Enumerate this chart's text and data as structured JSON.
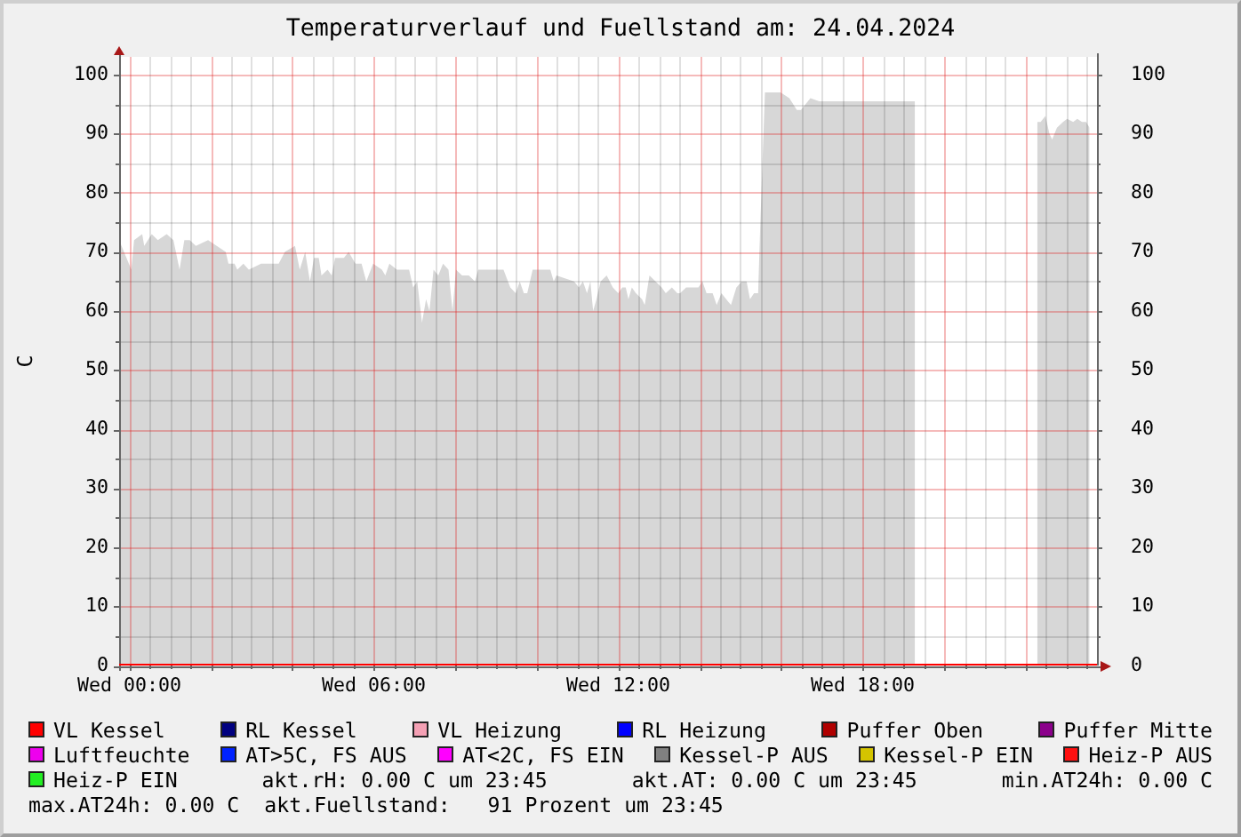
{
  "chart_data": {
    "type": "area",
    "title": "Temperaturverlauf und Fuellstand am: 24.04.2024",
    "ylabel": "C",
    "xlim": [
      "2024-04-23T23:45",
      "2024-04-24T23:45"
    ],
    "xticks": [
      {
        "value": "2024-04-24T00:00",
        "label": "Wed 00:00"
      },
      {
        "value": "2024-04-24T02:00",
        "label": null
      },
      {
        "value": "2024-04-24T04:00",
        "label": null
      },
      {
        "value": "2024-04-24T06:00",
        "label": "Wed 06:00"
      },
      {
        "value": "2024-04-24T08:00",
        "label": null
      },
      {
        "value": "2024-04-24T10:00",
        "label": null
      },
      {
        "value": "2024-04-24T12:00",
        "label": "Wed 12:00"
      },
      {
        "value": "2024-04-24T14:00",
        "label": null
      },
      {
        "value": "2024-04-24T16:00",
        "label": null
      },
      {
        "value": "2024-04-24T18:00",
        "label": "Wed 18:00"
      },
      {
        "value": "2024-04-24T20:00",
        "label": null
      },
      {
        "value": "2024-04-24T22:00",
        "label": null
      }
    ],
    "ylim": [
      0,
      103
    ],
    "yticks": [
      0,
      10,
      20,
      30,
      40,
      50,
      60,
      70,
      80,
      90,
      100
    ],
    "y2lim": [
      0,
      103
    ],
    "y2ticks": [
      0,
      10,
      20,
      30,
      40,
      50,
      60,
      70,
      80,
      90,
      100
    ],
    "x": [
      "2024-04-23T23:45",
      "2024-04-24T00:03",
      "2024-04-24T00:07",
      "2024-04-24T00:19",
      "2024-04-24T00:22",
      "2024-04-24T00:33",
      "2024-04-24T00:42",
      "2024-04-24T00:55",
      "2024-04-24T01:05",
      "2024-04-24T01:14",
      "2024-04-24T01:21",
      "2024-04-24T01:29",
      "2024-04-24T01:38",
      "2024-04-24T01:56",
      "2024-04-24T02:22",
      "2024-04-24T02:26",
      "2024-04-24T02:35",
      "2024-04-24T02:39",
      "2024-04-24T02:48",
      "2024-04-24T02:56",
      "2024-04-24T03:14",
      "2024-04-24T03:40",
      "2024-04-24T03:49",
      "2024-04-24T04:04",
      "2024-04-24T04:11",
      "2024-04-24T04:19",
      "2024-04-24T04:26",
      "2024-04-24T04:32",
      "2024-04-24T04:39",
      "2024-04-24T04:43",
      "2024-04-24T04:52",
      "2024-04-24T04:58",
      "2024-04-24T05:03",
      "2024-04-24T05:16",
      "2024-04-24T05:23",
      "2024-04-24T05:33",
      "2024-04-24T05:42",
      "2024-04-24T05:49",
      "2024-04-24T05:59",
      "2024-04-24T06:12",
      "2024-04-24T06:17",
      "2024-04-24T06:23",
      "2024-04-24T06:34",
      "2024-04-24T06:43",
      "2024-04-24T06:52",
      "2024-04-24T06:58",
      "2024-04-24T07:04",
      "2024-04-24T07:11",
      "2024-04-24T07:17",
      "2024-04-24T07:22",
      "2024-04-24T07:28",
      "2024-04-24T07:35",
      "2024-04-24T07:42",
      "2024-04-24T07:50",
      "2024-04-24T07:56",
      "2024-04-24T08:01",
      "2024-04-24T08:10",
      "2024-04-24T08:20",
      "2024-04-24T08:29",
      "2024-04-24T08:34",
      "2024-04-24T08:44",
      "2024-04-24T08:58",
      "2024-04-24T09:11",
      "2024-04-24T09:21",
      "2024-04-24T09:29",
      "2024-04-24T09:35",
      "2024-04-24T09:41",
      "2024-04-24T09:46",
      "2024-04-24T09:54",
      "2024-04-24T10:11",
      "2024-04-24T10:20",
      "2024-04-24T10:25",
      "2024-04-24T10:29",
      "2024-04-24T10:55",
      "2024-04-24T11:02",
      "2024-04-24T11:08",
      "2024-04-24T11:14",
      "2024-04-24T11:19",
      "2024-04-24T11:23",
      "2024-04-24T11:28",
      "2024-04-24T11:34",
      "2024-04-24T11:43",
      "2024-04-24T11:52",
      "2024-04-24T12:00",
      "2024-04-24T12:06",
      "2024-04-24T12:11",
      "2024-04-24T12:15",
      "2024-04-24T12:20",
      "2024-04-24T12:26",
      "2024-04-24T12:35",
      "2024-04-24T12:39",
      "2024-04-24T12:46",
      "2024-04-24T12:55",
      "2024-04-24T13:04",
      "2024-04-24T13:10",
      "2024-04-24T13:19",
      "2024-04-24T13:27",
      "2024-04-24T13:31",
      "2024-04-24T13:40",
      "2024-04-24T13:49",
      "2024-04-24T13:58",
      "2024-04-24T14:04",
      "2024-04-24T14:10",
      "2024-04-24T14:19",
      "2024-04-24T14:25",
      "2024-04-24T14:32",
      "2024-04-24T14:39",
      "2024-04-24T14:46",
      "2024-04-24T14:54",
      "2024-04-24T15:02",
      "2024-04-24T15:09",
      "2024-04-24T15:14",
      "2024-04-24T15:20",
      "2024-04-24T15:26",
      "2024-04-24T15:29",
      "2024-04-24T15:36",
      "2024-04-24T15:46",
      "2024-04-24T15:59",
      "2024-04-24T16:12",
      "2024-04-24T16:23",
      "2024-04-24T16:29",
      "2024-04-24T16:43",
      "2024-04-24T16:56",
      "2024-04-24T17:17",
      "2024-04-24T18:10",
      "2024-04-24T19:17",
      "2024-04-24T20:00",
      "2024-04-24T22:17",
      "2024-04-24T22:22",
      "2024-04-24T22:29",
      "2024-04-24T22:35",
      "2024-04-24T22:39",
      "2024-04-24T22:46",
      "2024-04-24T22:55",
      "2024-04-24T23:01",
      "2024-04-24T23:10",
      "2024-04-24T23:16",
      "2024-04-24T23:23",
      "2024-04-24T23:29",
      "2024-04-24T23:34",
      "2024-04-24T23:45"
    ],
    "series": [
      {
        "color": "#d7d7d7",
        "values": [
          72,
          67,
          72,
          73,
          71,
          73,
          72,
          73,
          72,
          67,
          72,
          72,
          71,
          72,
          70,
          68,
          68,
          67,
          68,
          67,
          68,
          68,
          70,
          71,
          67,
          70,
          65,
          69,
          69,
          66,
          67,
          66,
          69,
          69,
          70,
          68,
          68,
          65,
          68,
          67,
          66,
          68,
          67,
          67,
          67,
          64,
          65,
          58,
          62,
          60,
          67,
          66,
          68,
          67,
          60,
          67,
          66,
          66,
          65,
          67,
          67,
          67,
          67,
          64,
          63,
          65,
          63,
          63,
          67,
          67,
          67,
          65,
          66,
          65,
          64,
          65,
          63,
          65,
          60,
          62,
          65,
          66,
          64,
          63,
          64,
          64,
          62,
          64,
          63,
          62,
          61,
          66,
          65,
          64,
          63,
          64,
          63,
          63,
          64,
          64,
          64,
          65,
          63,
          63,
          61,
          63,
          62,
          61,
          64,
          65,
          65,
          62,
          63,
          63,
          74,
          97,
          97,
          97,
          96,
          94,
          94,
          96,
          95.5,
          95.5,
          95.5,
          95.5,
          null,
          92,
          92,
          93,
          90,
          89,
          91,
          92,
          92.5,
          92,
          92.5,
          92,
          92,
          91,
          null
        ]
      },
      {
        "name": "VL Kessel",
        "type": "line",
        "color": "#ff0000",
        "values": [
          0,
          0,
          0,
          0,
          0,
          0,
          0,
          0,
          0,
          0,
          0,
          0,
          0,
          0,
          0,
          0,
          0,
          0,
          0,
          0,
          0,
          0,
          0,
          0,
          0,
          0,
          0,
          0,
          0,
          0,
          0,
          0,
          0,
          0,
          0,
          0,
          0,
          0,
          0,
          0,
          0,
          0,
          0,
          0,
          0,
          0,
          0,
          0,
          0,
          0,
          0,
          0,
          0,
          0,
          0,
          0,
          0,
          0,
          0,
          0,
          0,
          0,
          0,
          0,
          0,
          0,
          0,
          0,
          0,
          0,
          0,
          0,
          0,
          0,
          0,
          0,
          0,
          0,
          0,
          0,
          0,
          0,
          0,
          0,
          0,
          0,
          0,
          0,
          0,
          0,
          0,
          0,
          0,
          0,
          0,
          0,
          0,
          0,
          0,
          0,
          0,
          0,
          0,
          0,
          0,
          0,
          0,
          0,
          0,
          0,
          0,
          0,
          0,
          0,
          0,
          0,
          0,
          0,
          0,
          0,
          0,
          0,
          0,
          0,
          0,
          0,
          0,
          0,
          0,
          0,
          0,
          0,
          0,
          0,
          0,
          0,
          0,
          0,
          0,
          0,
          0
        ]
      },
      {
        "name": "RL Kessel",
        "type": "line",
        "color": "#000080",
        "values": [
          null,
          null,
          null,
          null,
          null,
          null,
          null,
          null,
          null,
          null,
          null,
          null,
          null,
          null,
          null,
          null,
          null,
          null,
          null,
          null,
          null,
          null,
          null,
          null,
          null,
          null,
          null,
          null,
          null,
          null,
          null,
          null,
          null,
          null,
          null,
          null,
          null,
          null,
          null,
          null,
          null,
          null,
          null,
          null,
          null,
          null,
          null,
          null,
          null,
          null,
          null,
          null,
          null,
          null,
          null,
          null,
          null,
          null,
          null,
          null,
          null,
          null,
          null,
          null,
          null,
          null,
          null,
          null,
          null,
          null,
          null,
          null,
          null,
          null,
          null,
          null,
          null,
          null,
          null,
          null,
          null,
          null,
          null,
          null,
          null,
          null,
          null,
          null,
          null,
          null,
          null,
          null,
          null,
          null,
          null,
          null,
          null,
          null,
          null,
          null,
          null,
          null,
          null,
          null,
          null,
          null,
          null,
          null,
          null,
          null,
          null,
          null,
          null,
          null,
          null,
          null,
          null,
          null,
          null,
          null,
          null,
          null,
          null,
          null,
          null,
          null,
          null,
          null,
          null,
          null,
          null,
          null,
          null,
          null,
          null,
          null,
          null,
          null,
          null,
          null,
          null
        ]
      },
      {
        "name": "VL Heizung",
        "type": "line",
        "color": "#f4a0b4",
        "values": [
          null,
          null,
          null,
          null,
          null,
          null,
          null,
          null,
          null,
          null,
          null,
          null,
          null,
          null,
          null,
          null,
          null,
          null,
          null,
          null,
          null,
          null,
          null,
          null,
          null,
          null,
          null,
          null,
          null,
          null,
          null,
          null,
          null,
          null,
          null,
          null,
          null,
          null,
          null,
          null,
          null,
          null,
          null,
          null,
          null,
          null,
          null,
          null,
          null,
          null,
          null,
          null,
          null,
          null,
          null,
          null,
          null,
          null,
          null,
          null,
          null,
          null,
          null,
          null,
          null,
          null,
          null,
          null,
          null,
          null,
          null,
          null,
          null,
          null,
          null,
          null,
          null,
          null,
          null,
          null,
          null,
          null,
          null,
          null,
          null,
          null,
          null,
          null,
          null,
          null,
          null,
          null,
          null,
          null,
          null,
          null,
          null,
          null,
          null,
          null,
          null,
          null,
          null,
          null,
          null,
          null,
          null,
          null,
          null,
          null,
          null,
          null,
          null,
          null,
          null,
          null,
          null,
          null,
          null,
          null,
          null,
          null,
          null,
          null,
          null,
          null,
          null,
          null,
          null,
          null,
          null,
          null,
          null,
          null,
          null,
          null,
          null,
          null,
          null,
          null,
          null
        ]
      },
      {
        "name": "RL Heizung",
        "type": "line",
        "color": "#0000ff",
        "values": [
          null,
          null,
          null,
          null,
          null,
          null,
          null,
          null,
          null,
          null,
          null,
          null,
          null,
          null,
          null,
          null,
          null,
          null,
          null,
          null,
          null,
          null,
          null,
          null,
          null,
          null,
          null,
          null,
          null,
          null,
          null,
          null,
          null,
          null,
          null,
          null,
          null,
          null,
          null,
          null,
          null,
          null,
          null,
          null,
          null,
          null,
          null,
          null,
          null,
          null,
          null,
          null,
          null,
          null,
          null,
          null,
          null,
          null,
          null,
          null,
          null,
          null,
          null,
          null,
          null,
          null,
          null,
          null,
          null,
          null,
          null,
          null,
          null,
          null,
          null,
          null,
          null,
          null,
          null,
          null,
          null,
          null,
          null,
          null,
          null,
          null,
          null,
          null,
          null,
          null,
          null,
          null,
          null,
          null,
          null,
          null,
          null,
          null,
          null,
          null,
          null,
          null,
          null,
          null,
          null,
          null,
          null,
          null,
          null,
          null,
          null,
          null,
          null,
          null,
          null,
          null,
          null,
          null,
          null,
          null,
          null,
          null,
          null,
          null,
          null,
          null,
          null,
          null,
          null,
          null,
          null,
          null,
          null,
          null,
          null,
          null,
          null,
          null,
          null,
          null,
          null
        ]
      },
      {
        "name": "Puffer Oben",
        "type": "line",
        "color": "#b00000",
        "values": [
          null,
          null,
          null,
          null,
          null,
          null,
          null,
          null,
          null,
          null,
          null,
          null,
          null,
          null,
          null,
          null,
          null,
          null,
          null,
          null,
          null,
          null,
          null,
          null,
          null,
          null,
          null,
          null,
          null,
          null,
          null,
          null,
          null,
          null,
          null,
          null,
          null,
          null,
          null,
          null,
          null,
          null,
          null,
          null,
          null,
          null,
          null,
          null,
          null,
          null,
          null,
          null,
          null,
          null,
          null,
          null,
          null,
          null,
          null,
          null,
          null,
          null,
          null,
          null,
          null,
          null,
          null,
          null,
          null,
          null,
          null,
          null,
          null,
          null,
          null,
          null,
          null,
          null,
          null,
          null,
          null,
          null,
          null,
          null,
          null,
          null,
          null,
          null,
          null,
          null,
          null,
          null,
          null,
          null,
          null,
          null,
          null,
          null,
          null,
          null,
          null,
          null,
          null,
          null,
          null,
          null,
          null,
          null,
          null,
          null,
          null,
          null,
          null,
          null,
          null,
          null,
          null,
          null,
          null,
          null,
          null,
          null,
          null,
          null,
          null,
          null,
          null,
          null,
          null,
          null,
          null,
          null,
          null,
          null,
          null,
          null,
          null,
          null,
          null,
          null,
          null
        ]
      },
      {
        "name": "Puffer Mitte",
        "type": "line",
        "color": "#8b008b",
        "values": [
          null,
          null,
          null,
          null,
          null,
          null,
          null,
          null,
          null,
          null,
          null,
          null,
          null,
          null,
          null,
          null,
          null,
          null,
          null,
          null,
          null,
          null,
          null,
          null,
          null,
          null,
          null,
          null,
          null,
          null,
          null,
          null,
          null,
          null,
          null,
          null,
          null,
          null,
          null,
          null,
          null,
          null,
          null,
          null,
          null,
          null,
          null,
          null,
          null,
          null,
          null,
          null,
          null,
          null,
          null,
          null,
          null,
          null,
          null,
          null,
          null,
          null,
          null,
          null,
          null,
          null,
          null,
          null,
          null,
          null,
          null,
          null,
          null,
          null,
          null,
          null,
          null,
          null,
          null,
          null,
          null,
          null,
          null,
          null,
          null,
          null,
          null,
          null,
          null,
          null,
          null,
          null,
          null,
          null,
          null,
          null,
          null,
          null,
          null,
          null,
          null,
          null,
          null,
          null,
          null,
          null,
          null,
          null,
          null,
          null,
          null,
          null,
          null,
          null,
          null,
          null,
          null,
          null,
          null,
          null,
          null,
          null,
          null,
          null,
          null,
          null,
          null,
          null,
          null,
          null,
          null,
          null,
          null,
          null,
          null,
          null,
          null,
          null,
          null,
          null,
          null
        ]
      },
      {
        "name": "Luftfeuchte",
        "type": "line",
        "color": "#ee00ee",
        "values": [
          null,
          null,
          null,
          null,
          null,
          null,
          null,
          null,
          null,
          null,
          null,
          null,
          null,
          null,
          null,
          null,
          null,
          null,
          null,
          null,
          null,
          null,
          null,
          null,
          null,
          null,
          null,
          null,
          null,
          null,
          null,
          null,
          null,
          null,
          null,
          null,
          null,
          null,
          null,
          null,
          null,
          null,
          null,
          null,
          null,
          null,
          null,
          null,
          null,
          null,
          null,
          null,
          null,
          null,
          null,
          null,
          null,
          null,
          null,
          null,
          null,
          null,
          null,
          null,
          null,
          null,
          null,
          null,
          null,
          null,
          null,
          null,
          null,
          null,
          null,
          null,
          null,
          null,
          null,
          null,
          null,
          null,
          null,
          null,
          null,
          null,
          null,
          null,
          null,
          null,
          null,
          null,
          null,
          null,
          null,
          null,
          null,
          null,
          null,
          null,
          null,
          null,
          null,
          null,
          null,
          null,
          null,
          null,
          null,
          null,
          null,
          null,
          null,
          null,
          null,
          null,
          null,
          null,
          null,
          null,
          null,
          null,
          null,
          null,
          null,
          null,
          null,
          null,
          null,
          null,
          null,
          null,
          null,
          null,
          null,
          null,
          null,
          null,
          null,
          null,
          null
        ]
      },
      {
        "name": "AT>5C, FS AUS",
        "type": "line",
        "color": "#0022ff",
        "values": [
          null,
          null,
          null,
          null,
          null,
          null,
          null,
          null,
          null,
          null,
          null,
          null,
          null,
          null,
          null,
          null,
          null,
          null,
          null,
          null,
          null,
          null,
          null,
          null,
          null,
          null,
          null,
          null,
          null,
          null,
          null,
          null,
          null,
          null,
          null,
          null,
          null,
          null,
          null,
          null,
          null,
          null,
          null,
          null,
          null,
          null,
          null,
          null,
          null,
          null,
          null,
          null,
          null,
          null,
          null,
          null,
          null,
          null,
          null,
          null,
          null,
          null,
          null,
          null,
          null,
          null,
          null,
          null,
          null,
          null,
          null,
          null,
          null,
          null,
          null,
          null,
          null,
          null,
          null,
          null,
          null,
          null,
          null,
          null,
          null,
          null,
          null,
          null,
          null,
          null,
          null,
          null,
          null,
          null,
          null,
          null,
          null,
          null,
          null,
          null,
          null,
          null,
          null,
          null,
          null,
          null,
          null,
          null,
          null,
          null,
          null,
          null,
          null,
          null,
          null,
          null,
          null,
          null,
          null,
          null,
          null,
          null,
          null,
          null,
          null,
          null,
          null,
          null,
          null,
          null,
          null,
          null,
          null,
          null,
          null,
          null,
          null,
          null,
          null,
          null,
          null
        ]
      },
      {
        "name": "AT<2C, FS EIN",
        "type": "line",
        "color": "#ff00ff",
        "values": [
          null,
          null,
          null,
          null,
          null,
          null,
          null,
          null,
          null,
          null,
          null,
          null,
          null,
          null,
          null,
          null,
          null,
          null,
          null,
          null,
          null,
          null,
          null,
          null,
          null,
          null,
          null,
          null,
          null,
          null,
          null,
          null,
          null,
          null,
          null,
          null,
          null,
          null,
          null,
          null,
          null,
          null,
          null,
          null,
          null,
          null,
          null,
          null,
          null,
          null,
          null,
          null,
          null,
          null,
          null,
          null,
          null,
          null,
          null,
          null,
          null,
          null,
          null,
          null,
          null,
          null,
          null,
          null,
          null,
          null,
          null,
          null,
          null,
          null,
          null,
          null,
          null,
          null,
          null,
          null,
          null,
          null,
          null,
          null,
          null,
          null,
          null,
          null,
          null,
          null,
          null,
          null,
          null,
          null,
          null,
          null,
          null,
          null,
          null,
          null,
          null,
          null,
          null,
          null,
          null,
          null,
          null,
          null,
          null,
          null,
          null,
          null,
          null,
          null,
          null,
          null,
          null,
          null,
          null,
          null,
          null,
          null,
          null,
          null,
          null,
          null,
          null,
          null,
          null,
          null,
          null,
          null,
          null,
          null,
          null,
          null,
          null,
          null,
          null,
          null,
          null
        ]
      },
      {
        "name": "Kessel-P AUS",
        "type": "line",
        "color": "#808080",
        "values": [
          null,
          null,
          null,
          null,
          null,
          null,
          null,
          null,
          null,
          null,
          null,
          null,
          null,
          null,
          null,
          null,
          null,
          null,
          null,
          null,
          null,
          null,
          null,
          null,
          null,
          null,
          null,
          null,
          null,
          null,
          null,
          null,
          null,
          null,
          null,
          null,
          null,
          null,
          null,
          null,
          null,
          null,
          null,
          null,
          null,
          null,
          null,
          null,
          null,
          null,
          null,
          null,
          null,
          null,
          null,
          null,
          null,
          null,
          null,
          null,
          null,
          null,
          null,
          null,
          null,
          null,
          null,
          null,
          null,
          null,
          null,
          null,
          null,
          null,
          null,
          null,
          null,
          null,
          null,
          null,
          null,
          null,
          null,
          null,
          null,
          null,
          null,
          null,
          null,
          null,
          null,
          null,
          null,
          null,
          null,
          null,
          null,
          null,
          null,
          null,
          null,
          null,
          null,
          null,
          null,
          null,
          null,
          null,
          null,
          null,
          null,
          null,
          null,
          null,
          null,
          null,
          null,
          null,
          null,
          null,
          null,
          null,
          null,
          null,
          null,
          null,
          null,
          null,
          null,
          null,
          null,
          null,
          null,
          null,
          null,
          null,
          null,
          null,
          null,
          null,
          null
        ]
      },
      {
        "name": "Kessel-P EIN",
        "type": "line",
        "color": "#d4c400",
        "values": [
          null,
          null,
          null,
          null,
          null,
          null,
          null,
          null,
          null,
          null,
          null,
          null,
          null,
          null,
          null,
          null,
          null,
          null,
          null,
          null,
          null,
          null,
          null,
          null,
          null,
          null,
          null,
          null,
          null,
          null,
          null,
          null,
          null,
          null,
          null,
          null,
          null,
          null,
          null,
          null,
          null,
          null,
          null,
          null,
          null,
          null,
          null,
          null,
          null,
          null,
          null,
          null,
          null,
          null,
          null,
          null,
          null,
          null,
          null,
          null,
          null,
          null,
          null,
          null,
          null,
          null,
          null,
          null,
          null,
          null,
          null,
          null,
          null,
          null,
          null,
          null,
          null,
          null,
          null,
          null,
          null,
          null,
          null,
          null,
          null,
          null,
          null,
          null,
          null,
          null,
          null,
          null,
          null,
          null,
          null,
          null,
          null,
          null,
          null,
          null,
          null,
          null,
          null,
          null,
          null,
          null,
          null,
          null,
          null,
          null,
          null,
          null,
          null,
          null,
          null,
          null,
          null,
          null,
          null,
          null,
          null,
          null,
          null,
          null,
          null,
          null,
          null,
          null,
          null,
          null,
          null,
          null,
          null,
          null,
          null,
          null,
          null,
          null,
          null,
          null,
          null
        ]
      },
      {
        "name": "Heiz-P AUS",
        "type": "line",
        "color": "#ff1010",
        "values": [
          null,
          null,
          null,
          null,
          null,
          null,
          null,
          null,
          null,
          null,
          null,
          null,
          null,
          null,
          null,
          null,
          null,
          null,
          null,
          null,
          null,
          null,
          null,
          null,
          null,
          null,
          null,
          null,
          null,
          null,
          null,
          null,
          null,
          null,
          null,
          null,
          null,
          null,
          null,
          null,
          null,
          null,
          null,
          null,
          null,
          null,
          null,
          null,
          null,
          null,
          null,
          null,
          null,
          null,
          null,
          null,
          null,
          null,
          null,
          null,
          null,
          null,
          null,
          null,
          null,
          null,
          null,
          null,
          null,
          null,
          null,
          null,
          null,
          null,
          null,
          null,
          null,
          null,
          null,
          null,
          null,
          null,
          null,
          null,
          null,
          null,
          null,
          null,
          null,
          null,
          null,
          null,
          null,
          null,
          null,
          null,
          null,
          null,
          null,
          null,
          null,
          null,
          null,
          null,
          null,
          null,
          null,
          null,
          null,
          null,
          null,
          null,
          null,
          null,
          null,
          null,
          null,
          null,
          null,
          null,
          null,
          null,
          null,
          null,
          null,
          null,
          null,
          null,
          null,
          null,
          null,
          null,
          null,
          null,
          null,
          null,
          null,
          null,
          null,
          null,
          null
        ]
      },
      {
        "name": "Heiz-P EIN",
        "type": "line",
        "color": "#22ee22",
        "values": [
          null,
          null,
          null,
          null,
          null,
          null,
          null,
          null,
          null,
          null,
          null,
          null,
          null,
          null,
          null,
          null,
          null,
          null,
          null,
          null,
          null,
          null,
          null,
          null,
          null,
          null,
          null,
          null,
          null,
          null,
          null,
          null,
          null,
          null,
          null,
          null,
          null,
          null,
          null,
          null,
          null,
          null,
          null,
          null,
          null,
          null,
          null,
          null,
          null,
          null,
          null,
          null,
          null,
          null,
          null,
          null,
          null,
          null,
          null,
          null,
          null,
          null,
          null,
          null,
          null,
          null,
          null,
          null,
          null,
          null,
          null,
          null,
          null,
          null,
          null,
          null,
          null,
          null,
          null,
          null,
          null,
          null,
          null,
          null,
          null,
          null,
          null,
          null,
          null,
          null,
          null,
          null,
          null,
          null,
          null,
          null,
          null,
          null,
          null,
          null,
          null,
          null,
          null,
          null,
          null,
          null,
          null,
          null,
          null,
          null,
          null,
          null,
          null,
          null,
          null,
          null,
          null,
          null,
          null,
          null,
          null,
          null,
          null,
          null,
          null,
          null,
          null,
          null,
          null,
          null,
          null,
          null,
          null,
          null,
          null,
          null,
          null,
          null,
          null,
          null,
          null
        ]
      }
    ],
    "annotations": [
      "akt.rH: 0.00 C um 23:45",
      "akt.AT: 0.00 C um 23:45",
      "min.AT24h: 0.00 C",
      "max.AT24h: 0.00 C",
      "akt.Fuellstand:   91 Prozent um 23:45"
    ],
    "grid": true,
    "legend": "bottom",
    "marker": "none"
  }
}
